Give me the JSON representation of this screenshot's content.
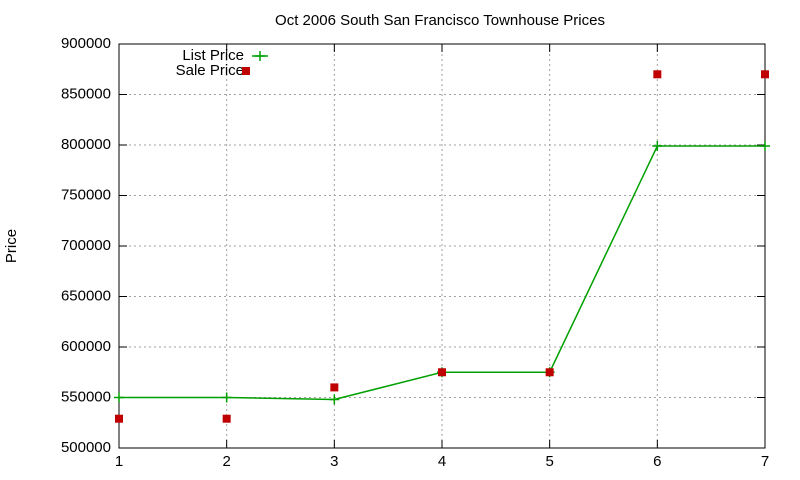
{
  "chart_data": {
    "type": "line",
    "title": "Oct 2006 South San Francisco Townhouse Prices",
    "y_label": "Price",
    "x": [
      1,
      2,
      3,
      4,
      5,
      6,
      7
    ],
    "series": [
      {
        "name": "List Price",
        "color": "#00a000",
        "marker": "plus",
        "line": true,
        "values": [
          550000,
          550000,
          548000,
          575000,
          575000,
          799000,
          799000
        ]
      },
      {
        "name": "Sale Price",
        "color": "#c00000",
        "marker": "square",
        "line": false,
        "values": [
          529000,
          529000,
          560000,
          575000,
          575000,
          870000,
          870000
        ]
      }
    ],
    "xlim": [
      1,
      7
    ],
    "xticks": [
      1,
      2,
      3,
      4,
      5,
      6,
      7
    ],
    "ylim": [
      500000,
      900000
    ],
    "yticks": [
      500000,
      550000,
      600000,
      650000,
      700000,
      750000,
      800000,
      850000,
      900000
    ],
    "grid": true,
    "legend": "top-left"
  }
}
